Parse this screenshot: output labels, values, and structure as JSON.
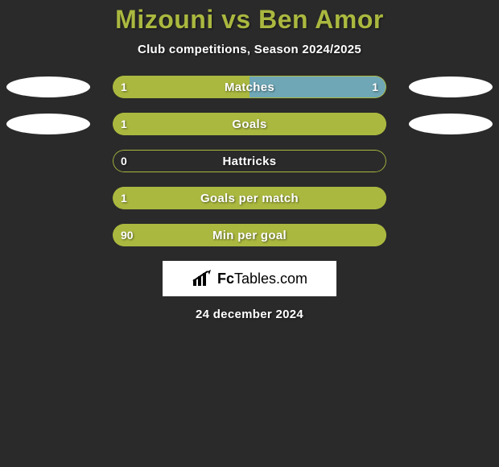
{
  "title": {
    "player1": "Mizouni",
    "vs": "vs",
    "player2": "Ben Amor"
  },
  "subtitle": "Club competitions, Season 2024/2025",
  "colors": {
    "bar_primary": "#aab83f",
    "bar_fill_light": "#6fa7b6",
    "background": "#2a2a2a",
    "text": "#ffffff"
  },
  "rows": [
    {
      "label": "Matches",
      "left_value": "1",
      "right_value": "1",
      "left_pct": 50,
      "right_pct": 50,
      "left_fill": "#aab83f",
      "right_fill": "#6fa7b6",
      "show_ellipse_left": true,
      "show_ellipse_right": true
    },
    {
      "label": "Goals",
      "left_value": "1",
      "right_value": "",
      "left_pct": 100,
      "right_pct": 0,
      "left_fill": "#aab83f",
      "right_fill": "transparent",
      "show_ellipse_left": true,
      "show_ellipse_right": true
    },
    {
      "label": "Hattricks",
      "left_value": "0",
      "right_value": "",
      "left_pct": 0,
      "right_pct": 0,
      "left_fill": "transparent",
      "right_fill": "transparent",
      "show_ellipse_left": false,
      "show_ellipse_right": false
    },
    {
      "label": "Goals per match",
      "left_value": "1",
      "right_value": "",
      "left_pct": 100,
      "right_pct": 0,
      "left_fill": "#aab83f",
      "right_fill": "transparent",
      "show_ellipse_left": false,
      "show_ellipse_right": false
    },
    {
      "label": "Min per goal",
      "left_value": "90",
      "right_value": "",
      "left_pct": 100,
      "right_pct": 0,
      "left_fill": "#aab83f",
      "right_fill": "transparent",
      "show_ellipse_left": false,
      "show_ellipse_right": false
    }
  ],
  "brand": {
    "prefix": "Fc",
    "suffix": "Tables.com"
  },
  "date": "24 december 2024"
}
